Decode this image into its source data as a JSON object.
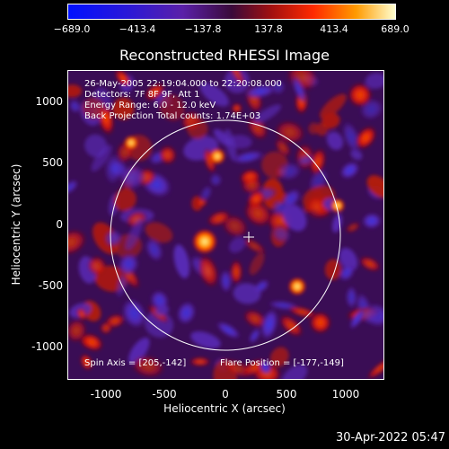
{
  "colorbar": {
    "tick_labels": [
      "−689.0",
      "−413.4",
      "−137.8",
      "137.8",
      "413.4",
      "689.0"
    ],
    "min": -689.0,
    "max": 689.0
  },
  "title": "Reconstructed RHESSI Image",
  "info": {
    "line1": "26-May-2005 22:19:04.000 to 22:20:08.000",
    "line2": "Detectors: 7F 8F 9F, Att 1",
    "line3": "Energy Range: 6.0 - 12.0 keV",
    "line4": "Back Projection     Total counts: 1.74E+03",
    "spin_axis": "Spin Axis = [205,-142]",
    "flare_position": "Flare Position = [-177,-149]"
  },
  "axes": {
    "xlabel": "Heliocentric X (arcsec)",
    "ylabel": "Heliocentric Y (arcsec)",
    "xticks": [
      "-1000",
      "-500",
      "0",
      "500",
      "1000"
    ],
    "yticks": [
      "1000",
      "500",
      "0",
      "-500",
      "-1000"
    ],
    "xlim": [
      -1275,
      1275
    ],
    "ylim": [
      -1275,
      1275
    ]
  },
  "footer": "30-Apr-2022 05:47",
  "colors": {
    "background": "#000000",
    "foreground": "#ffffff"
  }
}
